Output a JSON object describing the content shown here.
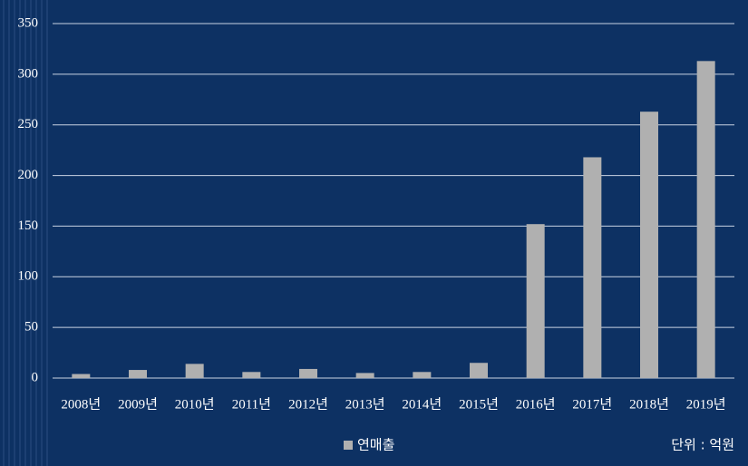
{
  "chart_data": {
    "type": "bar",
    "categories": [
      "2008년",
      "2009년",
      "2010년",
      "2011년",
      "2012년",
      "2013년",
      "2014년",
      "2015년",
      "2016년",
      "2017년",
      "2018년",
      "2019년"
    ],
    "series": [
      {
        "name": "연매출",
        "color": "#b0b0b0",
        "values": [
          4,
          8,
          14,
          6,
          9,
          5,
          6,
          15,
          152,
          218,
          263,
          313
        ]
      }
    ],
    "ylim": [
      0,
      350
    ],
    "yticks": [
      0,
      50,
      100,
      150,
      200,
      250,
      300,
      350
    ],
    "grid": true,
    "unit_note": "단위 : 억원"
  }
}
